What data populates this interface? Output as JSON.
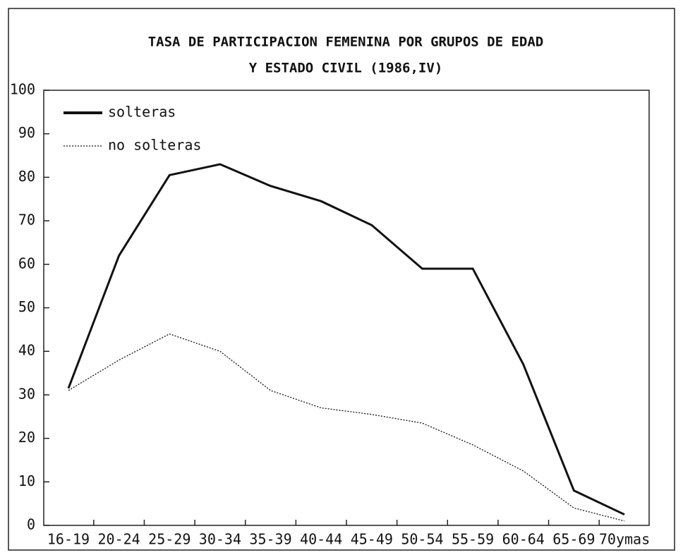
{
  "chart_data": {
    "type": "line",
    "title": [
      "TASA DE PARTICIPACION FEMENINA POR GRUPOS DE EDAD",
      "Y ESTADO CIVIL (1986,IV)"
    ],
    "categories": [
      "16-19",
      "20-24",
      "25-29",
      "30-34",
      "35-39",
      "40-44",
      "45-49",
      "50-54",
      "55-59",
      "60-64",
      "65-69",
      "70ymas"
    ],
    "series": [
      {
        "name": "solteras",
        "color": "#111111",
        "style": "solid",
        "values": [
          31.5,
          62,
          80.5,
          83,
          78,
          74.5,
          69,
          59,
          59,
          37,
          8,
          2.5
        ]
      },
      {
        "name": "no solteras",
        "color": "#111111",
        "style": "dotted",
        "values": [
          31,
          38,
          44,
          40,
          31,
          27,
          25.5,
          23.5,
          18.5,
          12.5,
          4,
          1
        ]
      }
    ],
    "ylim": [
      0,
      100
    ],
    "yticks": [
      0,
      10,
      20,
      30,
      40,
      50,
      60,
      70,
      80,
      90,
      100
    ],
    "legend": "upper-left"
  }
}
